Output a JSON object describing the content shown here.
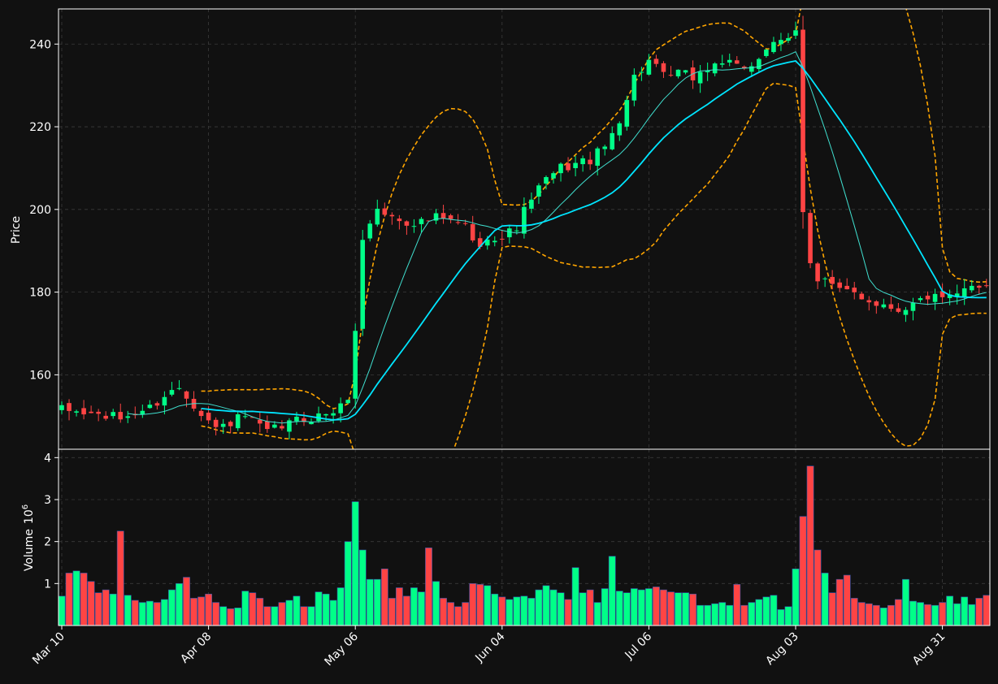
{
  "chart_data": {
    "type": "candlestick",
    "panels": [
      {
        "name": "price",
        "ylabel": "Price",
        "ylim": [
          142,
          248.5
        ],
        "yticks": [
          160,
          180,
          200,
          220,
          240
        ]
      },
      {
        "name": "volume",
        "ylabel": "Volume",
        "ylabel_exponent": "10",
        "ylabel_power": "6",
        "ylim": [
          0,
          4.2
        ],
        "yticks": [
          1,
          2,
          3,
          4
        ]
      }
    ],
    "x_tick_labels": [
      {
        "index": 0,
        "label": "Mar 10"
      },
      {
        "index": 20,
        "label": "Apr 08"
      },
      {
        "index": 40,
        "label": "May 06"
      },
      {
        "index": 60,
        "label": "Jun 04"
      },
      {
        "index": 80,
        "label": "Jul 06"
      },
      {
        "index": 100,
        "label": "Aug 03"
      },
      {
        "index": 120,
        "label": "Aug 31"
      }
    ],
    "n_points": 127,
    "grid": true,
    "colors": {
      "background": "#111111",
      "up": "#00ff88",
      "down": "#ff4444",
      "ma_short": "#40e0d0",
      "ma_long": "#00e5ff",
      "bands": "#ffa500",
      "grid": "#3a3a3a",
      "text": "#ffffff",
      "volume_edge": "#3355aa"
    },
    "keypoints": [
      [
        0,
        151.5
      ],
      [
        8,
        149.5
      ],
      [
        12,
        152
      ],
      [
        14,
        155
      ],
      [
        16,
        157
      ],
      [
        19,
        151
      ],
      [
        21,
        147
      ],
      [
        25,
        150
      ],
      [
        28,
        146
      ],
      [
        32,
        149
      ],
      [
        35,
        150
      ],
      [
        38,
        152
      ],
      [
        39,
        155
      ],
      [
        40,
        170
      ],
      [
        41,
        193
      ],
      [
        42,
        197
      ],
      [
        43,
        200
      ],
      [
        45,
        198
      ],
      [
        47,
        197
      ],
      [
        49,
        197
      ],
      [
        51,
        198
      ],
      [
        53,
        197
      ],
      [
        55,
        196
      ],
      [
        57,
        190
      ],
      [
        58,
        194
      ],
      [
        60,
        193
      ],
      [
        62,
        196
      ],
      [
        64,
        203
      ],
      [
        66,
        207
      ],
      [
        68,
        210
      ],
      [
        70,
        211
      ],
      [
        72,
        212
      ],
      [
        74,
        215
      ],
      [
        76,
        222
      ],
      [
        78,
        232
      ],
      [
        80,
        236
      ],
      [
        82,
        232
      ],
      [
        84,
        233
      ],
      [
        86,
        232
      ],
      [
        88,
        234
      ],
      [
        90,
        236
      ],
      [
        92,
        234
      ],
      [
        94,
        235
      ],
      [
        96,
        239
      ],
      [
        98,
        240
      ],
      [
        99,
        241
      ],
      [
        100,
        243
      ],
      [
        101,
        200
      ],
      [
        102,
        188
      ],
      [
        103,
        183
      ],
      [
        104,
        183
      ],
      [
        106,
        180
      ],
      [
        108,
        180
      ],
      [
        110,
        178
      ],
      [
        112,
        177
      ],
      [
        114,
        176
      ],
      [
        116,
        177
      ],
      [
        118,
        179
      ],
      [
        120,
        178
      ],
      [
        122,
        179
      ],
      [
        124,
        182
      ],
      [
        126,
        182
      ]
    ],
    "volume": [
      0.7,
      1.25,
      1.3,
      1.25,
      1.05,
      0.78,
      0.85,
      0.75,
      2.25,
      0.72,
      0.6,
      0.55,
      0.58,
      0.55,
      0.62,
      0.85,
      1.0,
      1.15,
      0.65,
      0.68,
      0.75,
      0.55,
      0.45,
      0.4,
      0.42,
      0.82,
      0.78,
      0.65,
      0.45,
      0.45,
      0.55,
      0.6,
      0.7,
      0.45,
      0.45,
      0.8,
      0.75,
      0.6,
      0.9,
      2.0,
      2.95,
      1.8,
      1.1,
      1.1,
      1.35,
      0.65,
      0.9,
      0.7,
      0.9,
      0.8,
      1.85,
      1.05,
      0.65,
      0.55,
      0.45,
      0.55,
      1.0,
      0.98,
      0.95,
      0.75,
      0.68,
      0.62,
      0.68,
      0.7,
      0.65,
      0.85,
      0.95,
      0.85,
      0.78,
      0.62,
      1.38,
      0.78,
      0.85,
      0.55,
      0.88,
      1.65,
      0.82,
      0.78,
      0.88,
      0.85,
      0.88,
      0.92,
      0.85,
      0.8,
      0.78,
      0.78,
      0.75,
      0.48,
      0.48,
      0.52,
      0.55,
      0.48,
      0.98,
      0.48,
      0.55,
      0.62,
      0.68,
      0.72,
      0.38,
      0.45,
      1.35,
      2.6,
      3.8,
      1.8,
      1.25,
      0.78,
      1.1,
      1.2,
      0.65,
      0.55,
      0.52,
      0.48,
      0.42,
      0.48,
      0.62,
      1.1,
      0.58,
      0.55,
      0.5,
      0.48,
      0.55,
      0.7,
      0.52,
      0.68,
      0.5,
      0.65,
      0.72
    ]
  }
}
